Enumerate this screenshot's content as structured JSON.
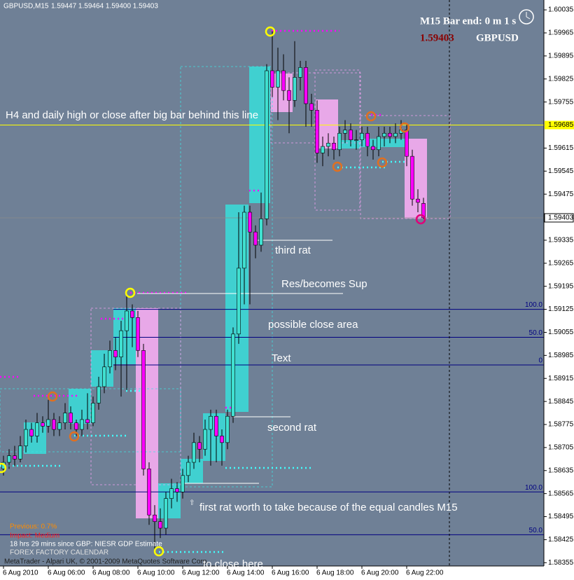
{
  "chart_data": {
    "type": "candlestick",
    "symbol": "GBPUSD,M15",
    "ohlc_label": "1.59447 1.59464 1.59400 1.59403",
    "timer": "M15 Bar end: 0 m 1 s",
    "pair": "GBPUSD",
    "categories": [
      "6 Aug 2010",
      null,
      null,
      null,
      null,
      null,
      null,
      null,
      "6 Aug 06:00",
      null,
      null,
      null,
      null,
      null,
      null,
      null,
      "6 Aug 08:00",
      null,
      null,
      null,
      null,
      null,
      null,
      null,
      "6 Aug 10:00",
      null,
      null,
      null,
      null,
      null,
      null,
      null,
      "6 Aug 12:00",
      null,
      null,
      null,
      null,
      null,
      null,
      null,
      "6 Aug 14:00",
      null,
      null,
      null,
      null,
      null,
      null,
      null,
      "6 Aug 16:00",
      null,
      null,
      null,
      null,
      null,
      null,
      null,
      "6 Aug 18:00",
      null,
      null,
      null,
      null,
      null,
      null,
      null,
      "6 Aug 20:00",
      null,
      null,
      null,
      null,
      null,
      null,
      null,
      "6 Aug 22:00",
      null,
      null,
      null
    ],
    "open": [
      1.5864,
      1.5866,
      1.5868,
      1.5867,
      1.5871,
      1.5876,
      1.5874,
      1.5878,
      1.5877,
      1.5879,
      1.5876,
      1.5878,
      1.5881,
      1.5878,
      1.5876,
      1.5879,
      1.5878,
      1.5884,
      1.5889,
      1.5895,
      1.59,
      1.5898,
      1.5906,
      1.5912,
      1.591,
      1.59,
      1.5864,
      1.585,
      1.5848,
      1.5846,
      1.5855,
      1.5858,
      1.5857,
      1.5862,
      1.5866,
      1.5872,
      1.587,
      1.5876,
      1.588,
      1.5874,
      1.5872,
      1.588,
      1.5905,
      1.5925,
      1.5942,
      1.5936,
      1.5932,
      1.594,
      1.5985,
      1.598,
      1.5985,
      1.5979,
      1.5976,
      1.5983,
      1.5986,
      1.5975,
      1.5973,
      1.596,
      1.5962,
      1.5963,
      1.5961,
      1.5966,
      1.5967,
      1.5964,
      1.5964,
      1.5966,
      1.5962,
      1.5961,
      1.5965,
      1.5966,
      1.5965,
      1.5966,
      1.5967,
      1.5959,
      1.5946,
      1.59447
    ],
    "high": [
      1.5868,
      1.587,
      1.5871,
      1.5874,
      1.5879,
      1.5878,
      1.5881,
      1.588,
      1.5885,
      1.5881,
      1.588,
      1.5884,
      1.5883,
      1.5879,
      1.5882,
      1.5887,
      1.5886,
      1.5892,
      1.5899,
      1.5903,
      1.5904,
      1.5909,
      1.5917,
      1.5914,
      1.5912,
      1.5902,
      1.5866,
      1.5853,
      1.5852,
      1.5857,
      1.5861,
      1.586,
      1.5864,
      1.5868,
      1.5875,
      1.5874,
      1.5879,
      1.5882,
      1.5882,
      1.5876,
      1.5882,
      1.5907,
      1.5942,
      1.5944,
      1.5944,
      1.5938,
      1.5948,
      1.5987,
      1.5997,
      1.5992,
      1.599,
      1.5983,
      1.5994,
      1.5988,
      1.5988,
      1.5978,
      1.5976,
      1.5965,
      1.5966,
      1.5965,
      1.5968,
      1.597,
      1.5969,
      1.5967,
      1.5968,
      1.5968,
      1.5964,
      1.5968,
      1.5968,
      1.5968,
      1.5969,
      1.597,
      1.5969,
      1.5961,
      1.5949,
      1.59464
    ],
    "low": [
      1.5862,
      1.5864,
      1.5865,
      1.5866,
      1.5869,
      1.5872,
      1.5872,
      1.5875,
      1.5875,
      1.5874,
      1.5874,
      1.5876,
      1.5876,
      1.5874,
      1.5874,
      1.5876,
      1.5877,
      1.5882,
      1.5887,
      1.5893,
      1.5894,
      1.5886,
      1.5888,
      1.5901,
      1.5898,
      1.5862,
      1.5847,
      1.5839,
      1.5843,
      1.5844,
      1.5852,
      1.5854,
      1.5855,
      1.586,
      1.5864,
      1.5866,
      1.5868,
      1.5865,
      1.5866,
      1.5865,
      1.587,
      1.5878,
      1.5902,
      1.5914,
      1.5914,
      1.5928,
      1.593,
      1.5938,
      1.5977,
      1.597,
      1.5976,
      1.5966,
      1.5974,
      1.5979,
      1.5968,
      1.5968,
      1.5957,
      1.5956,
      1.5959,
      1.5958,
      1.5959,
      1.5963,
      1.5962,
      1.5961,
      1.5962,
      1.5959,
      1.5958,
      1.5959,
      1.5962,
      1.5963,
      1.5963,
      1.5964,
      1.5956,
      1.5944,
      1.5942,
      1.594
    ],
    "close": [
      1.5866,
      1.5868,
      1.5867,
      1.5871,
      1.5876,
      1.5874,
      1.5878,
      1.5877,
      1.5879,
      1.5876,
      1.5878,
      1.5881,
      1.5878,
      1.5876,
      1.5879,
      1.5878,
      1.5884,
      1.5889,
      1.5895,
      1.59,
      1.5898,
      1.5906,
      1.5912,
      1.591,
      1.59,
      1.5864,
      1.585,
      1.5848,
      1.5846,
      1.5855,
      1.5858,
      1.5857,
      1.5862,
      1.5866,
      1.5872,
      1.587,
      1.5876,
      1.588,
      1.5874,
      1.5872,
      1.588,
      1.5905,
      1.5925,
      1.5942,
      1.5936,
      1.5932,
      1.594,
      1.5985,
      1.598,
      1.5985,
      1.5979,
      1.5976,
      1.5983,
      1.5986,
      1.5975,
      1.5973,
      1.596,
      1.5962,
      1.5963,
      1.5961,
      1.5966,
      1.5967,
      1.5964,
      1.5964,
      1.5966,
      1.5962,
      1.5961,
      1.5965,
      1.5966,
      1.5965,
      1.5966,
      1.5967,
      1.5959,
      1.5946,
      1.5945,
      1.59403
    ],
    "up_color": "#40e0d0",
    "down_color": "#ff00ff",
    "background": "#6f8096",
    "ylim": [
      1.58345,
      1.60065
    ],
    "yticks": [
      1.60035,
      1.59965,
      1.59895,
      1.59825,
      1.59755,
      1.59615,
      1.59545,
      1.59475,
      1.59335,
      1.59265,
      1.59195,
      1.59125,
      1.59055,
      1.58985,
      1.58915,
      1.58845,
      1.58775,
      1.58705,
      1.58635,
      1.58565,
      1.58495,
      1.58425,
      1.58355
    ],
    "hline": {
      "value": 1.59685,
      "color": "#ffff00"
    },
    "levels": [
      {
        "value": 1.59125,
        "label": "100.0"
      },
      {
        "value": 1.5904,
        "label": "50.0"
      },
      {
        "value": 1.58956,
        "label": "0"
      },
      {
        "value": 1.5857,
        "label": "100.0"
      },
      {
        "value": 1.5844,
        "label": "50.0"
      }
    ],
    "level_color": "#000080",
    "annotations": [
      "H4 and daily high or close after big bar behind this line",
      "third rat",
      "Res/becomes Sup",
      "possible close area",
      "Text",
      "second rat",
      "first rat worth to take because of the equal candles M15",
      "to close here"
    ],
    "calendar": {
      "previous": "Previous: 0.7%",
      "impact": "Impact: Medium",
      "since": "18 hrs 29 mins since GBP: NIESR GDP Estimate",
      "source": "FOREX FACTORY CALENDAR"
    },
    "copyright": "MetaTrader - Alpari UK, © 2001-2009 MetaQuotes Software Corp."
  }
}
